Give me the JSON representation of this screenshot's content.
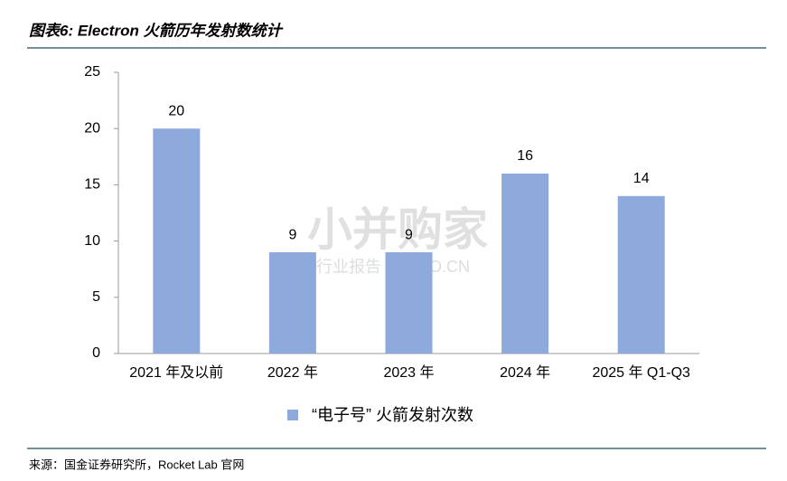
{
  "chart_data": {
    "type": "bar",
    "title": "图表6: Electron 火箭历年发射数统计",
    "categories": [
      "2021 年及以前",
      "2022 年",
      "2023 年",
      "2024 年",
      "2025 年 Q1-Q3"
    ],
    "series": [
      {
        "name": "“电子号” 火箭发射次数",
        "color": "#8eaadc",
        "values": [
          20,
          9,
          9,
          16,
          14
        ]
      }
    ],
    "ylim": [
      0,
      25
    ],
    "yticks": [
      0,
      5,
      10,
      15,
      20,
      25
    ],
    "grid": false,
    "legend": "bottom",
    "watermark": [
      "小并购家",
      "行业报告 IPOIPO.CN"
    ],
    "source": "来源：国金证券研究所，Rocket Lab 官网"
  }
}
